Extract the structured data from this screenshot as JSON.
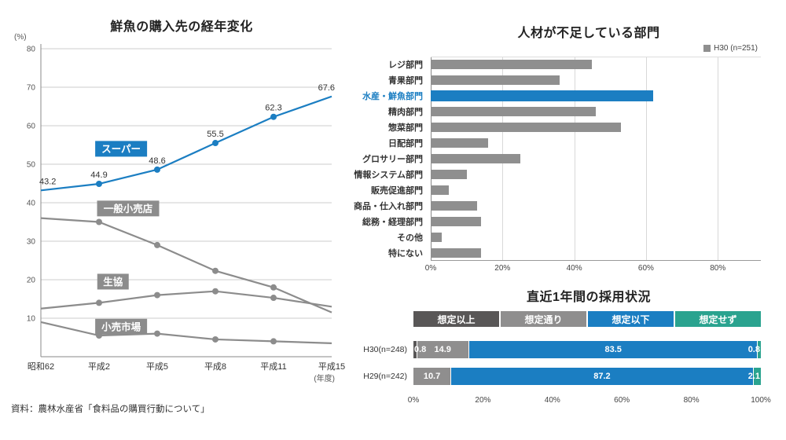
{
  "chart_data": [
    {
      "type": "line",
      "title": "鮮魚の購入先の経年変化",
      "y_unit": "(%)",
      "x_axis_note": "(年度)",
      "source": "資料：農林水産省「食料品の購買行動について」",
      "categories": [
        "昭和62",
        "平成2",
        "平成5",
        "平成8",
        "平成11",
        "平成15"
      ],
      "ylim": [
        0,
        80
      ],
      "yticks": [
        10,
        20,
        30,
        40,
        50,
        60,
        70,
        80
      ],
      "grid": "horizontal",
      "series": [
        {
          "name": "スーパー",
          "color": "#1b7ec2",
          "highlight": true,
          "show_value_labels": true,
          "values": [
            43.2,
            44.9,
            48.6,
            55.5,
            62.3,
            67.6
          ],
          "label_anchor": {
            "xi": 1.38,
            "y": 54
          }
        },
        {
          "name": "一般小売店",
          "color": "#8c8c8c",
          "values": [
            36,
            35,
            29,
            22.3,
            18,
            11.5
          ],
          "label_anchor": {
            "xi": 1.5,
            "y": 38.5
          }
        },
        {
          "name": "生協",
          "color": "#8c8c8c",
          "values": [
            12.5,
            14,
            16,
            17,
            15.3,
            13
          ],
          "label_anchor": {
            "xi": 1.24,
            "y": 19.5
          }
        },
        {
          "name": "小売市場",
          "color": "#8c8c8c",
          "values": [
            9,
            5.5,
            6,
            4.5,
            4,
            3.5
          ],
          "label_anchor": {
            "xi": 1.38,
            "y": 7.8
          }
        }
      ]
    },
    {
      "type": "bar",
      "title": "人材が不足している部門",
      "legend": "H30 (n=251)",
      "legend_position": "top-right",
      "bar_color": "#8f8f8f",
      "highlight_color": "#1b7ec2",
      "xmax": 92,
      "xticks": [
        "0%",
        "20%",
        "40%",
        "60%",
        "80%"
      ],
      "rows": [
        {
          "label": "レジ部門",
          "value": 45
        },
        {
          "label": "青果部門",
          "value": 36
        },
        {
          "label": "水産・鮮魚部門",
          "value": 62,
          "highlight": true
        },
        {
          "label": "精肉部門",
          "value": 46
        },
        {
          "label": "惣菜部門",
          "value": 53
        },
        {
          "label": "日配部門",
          "value": 16
        },
        {
          "label": "グロサリー部門",
          "value": 25
        },
        {
          "label": "情報システム部門",
          "value": 10
        },
        {
          "label": "販売促進部門",
          "value": 5
        },
        {
          "label": "商品・仕入れ部門",
          "value": 13
        },
        {
          "label": "総務・経理部門",
          "value": 14
        },
        {
          "label": "その他",
          "value": 3
        },
        {
          "label": "特にない",
          "value": 14
        }
      ]
    },
    {
      "type": "stacked-bar",
      "title": "直近1年間の採用状況",
      "xticks": [
        "0%",
        "20%",
        "40%",
        "60%",
        "80%",
        "100%"
      ],
      "segments": [
        {
          "label": "想定以上",
          "color": "#595757"
        },
        {
          "label": "想定通り",
          "color": "#8f8e8e"
        },
        {
          "label": "想定以下",
          "color": "#1b7ec2"
        },
        {
          "label": "想定せず",
          "color": "#2aa38f"
        }
      ],
      "rows": [
        {
          "label": "H30(n=248)",
          "values": [
            0.8,
            14.9,
            83.5,
            0.8
          ]
        },
        {
          "label": "H29(n=242)",
          "values": [
            0,
            10.7,
            87.2,
            2.1
          ]
        }
      ]
    }
  ]
}
